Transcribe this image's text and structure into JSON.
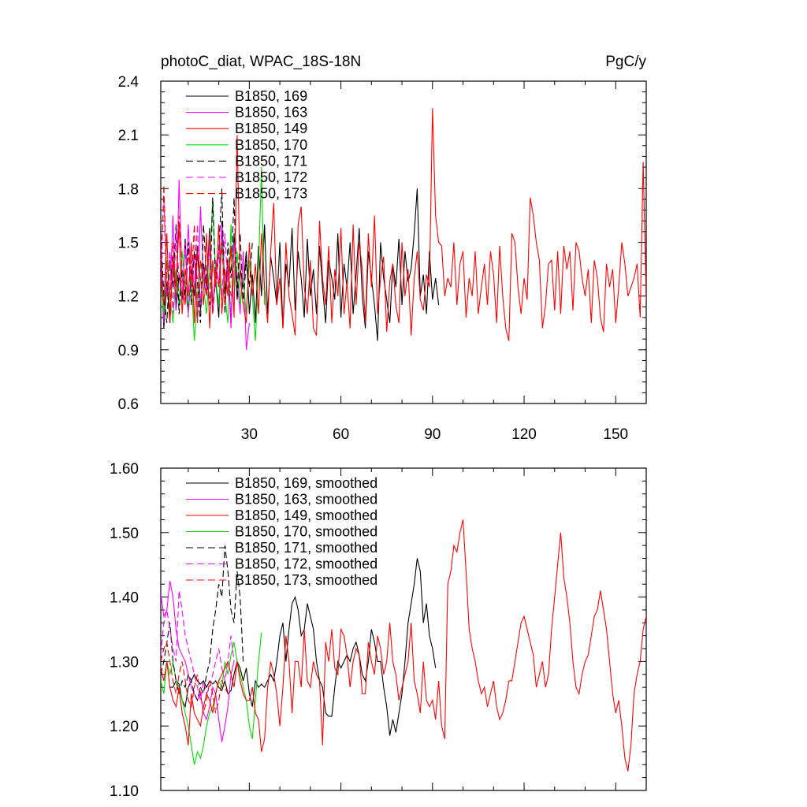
{
  "colors": {
    "s169": "#000000",
    "s163": "#ff00ff",
    "s149": "#ff0000",
    "s170": "#00dd00",
    "s171": "#000000",
    "s172": "#ff00ff",
    "s173": "#ff0000"
  },
  "chart_data": [
    {
      "type": "line",
      "title": "photoC_diat, WPAC_18S-18N",
      "units": "PgC/y",
      "xlim": [
        1,
        160
      ],
      "ylim": [
        0.6,
        2.4
      ],
      "xticks": [
        30,
        60,
        90,
        120,
        150
      ],
      "xtick_labels": [
        "30",
        "60",
        "90",
        "120",
        "150"
      ],
      "yticks": [
        0.6,
        0.9,
        1.2,
        1.5,
        1.8,
        2.1,
        2.4
      ],
      "ytick_labels": [
        "0.6",
        "0.9",
        "1.2",
        "1.5",
        "1.8",
        "2.1",
        "2.4"
      ],
      "legend": "top-left",
      "series": [
        {
          "name": "B1850, 169",
          "key": "s169",
          "dash": false,
          "x0": 1,
          "values": [
            1.45,
            1.02,
            1.28,
            1.05,
            1.42,
            1.12,
            1.32,
            1.18,
            1.52,
            1.1,
            1.35,
            1.2,
            1.48,
            1.12,
            1.38,
            1.25,
            1.58,
            1.15,
            1.3,
            1.08,
            1.62,
            1.22,
            1.4,
            1.05,
            1.55,
            1.18,
            1.35,
            1.25,
            1.45,
            1.1,
            1.32,
            1.05,
            1.48,
            1.2,
            1.6,
            1.1,
            1.42,
            1.3,
            1.15,
            1.5,
            1.02,
            1.38,
            1.25,
            1.58,
            1.12,
            1.45,
            1.3,
            1.08,
            1.52,
            1.2,
            1.35,
            1.1,
            1.48,
            1.25,
            1.05,
            1.4,
            1.3,
            1.18,
            1.55,
            1.08,
            1.38,
            1.25,
            1.5,
            1.1,
            1.32,
            1.58,
            1.2,
            1.02,
            1.45,
            1.3,
            1.15,
            0.95,
            1.5,
            1.3,
            1.18,
            1.05,
            1.38,
            1.25,
            1.52,
            1.15,
            1.45,
            1.28,
            1.35,
            1.55,
            1.8,
            1.2,
            1.32,
            1.1,
            1.45,
            1.18,
            1.3,
            1.15
          ]
        },
        {
          "name": "B1850, 163",
          "key": "s163",
          "dash": false,
          "x0": 1,
          "values": [
            1.55,
            1.05,
            1.4,
            1.2,
            1.65,
            1.12,
            1.85,
            1.3,
            1.15,
            1.6,
            1.25,
            1.45,
            1.05,
            1.7,
            1.3,
            1.2,
            1.55,
            1.1,
            1.4,
            1.25,
            1.6,
            1.15,
            1.35,
            1.02,
            1.5,
            1.3,
            1.1,
            1.45,
            0.9,
            1.05
          ]
        },
        {
          "name": "B1850, 149",
          "key": "s149",
          "dash": false,
          "x0": 1,
          "values": [
            1.3,
            1.15,
            1.55,
            1.05,
            1.4,
            1.25,
            1.6,
            1.1,
            1.35,
            1.2,
            1.5,
            1.05,
            1.45,
            1.3,
            1.15,
            1.55,
            1.02,
            1.4,
            1.25,
            1.6,
            1.1,
            1.35,
            1.2,
            1.48,
            1.08,
            2.1,
            1.3,
            1.15,
            1.05,
            1.5,
            1.2,
            1.38,
            1.1,
            1.55,
            1.25,
            1.05,
            1.45,
            1.72,
            1.15,
            1.3,
            1.02,
            1.5,
            1.2,
            1.1,
            0.98,
            1.6,
            1.7,
            1.25,
            1.1,
            1.4,
            1.02,
            0.98,
            1.62,
            1.3,
            1.15,
            1.48,
            1.05,
            1.35,
            1.2,
            1.58,
            1.1,
            1.28,
            1.02,
            1.6,
            1.15,
            1.5,
            1.35,
            1.05,
            1.55,
            1.25,
            1.65,
            1.1,
            1.3,
            1.42,
            1.0,
            1.28,
            1.38,
            1.15,
            1.05,
            1.5,
            1.2,
            1.35,
            0.98,
            1.3,
            1.45,
            1.18,
            1.12,
            1.32,
            1.25,
            2.25,
            1.65,
            1.5,
            1.48,
            1.2,
            1.3,
            1.25,
            1.5,
            1.15,
            1.38,
            1.45,
            1.08,
            1.3,
            1.2,
            1.45,
            1.1,
            1.25,
            1.38,
            1.15,
            1.45,
            1.32,
            1.05,
            1.48,
            1.2,
            1.02,
            0.95,
            1.55,
            1.5,
            1.25,
            1.1,
            1.3,
            1.18,
            1.75,
            1.65,
            1.5,
            1.4,
            1.02,
            1.15,
            1.38,
            1.4,
            1.12,
            1.45,
            1.1,
            1.48,
            1.35,
            1.45,
            1.12,
            1.5,
            1.45,
            1.3,
            1.2,
            1.35,
            1.05,
            1.4,
            1.3,
            1.08,
            1.0,
            1.38,
            1.25,
            1.35,
            1.05,
            1.25,
            1.5,
            1.38,
            1.2,
            1.25,
            1.3,
            1.38,
            1.08,
            1.95,
            1.18
          ]
        },
        {
          "name": "B1850, 170",
          "key": "s170",
          "dash": false,
          "x0": 1,
          "values": [
            1.3,
            1.1,
            1.4,
            1.2,
            1.05,
            1.35,
            1.15,
            1.45,
            1.25,
            1.1,
            1.3,
            0.95,
            1.2,
            1.4,
            1.25,
            1.1,
            1.35,
            1.75,
            1.3,
            1.15,
            1.5,
            1.2,
            1.05,
            1.6,
            1.25,
            1.45,
            1.15,
            1.3,
            1.1,
            1.4,
            1.2,
            0.95,
            1.35,
            1.92,
            1.15
          ]
        },
        {
          "name": "B1850, 171",
          "key": "s171",
          "dash": true,
          "x0": 1,
          "values": [
            1.55,
            1.2,
            1.05,
            1.4,
            1.25,
            1.6,
            1.1,
            1.35,
            1.2,
            1.5,
            1.15,
            1.45,
            1.28,
            1.05,
            1.6,
            1.3,
            1.15,
            1.75,
            1.25,
            1.45,
            1.8,
            1.1,
            1.5,
            1.3,
            1.75,
            1.2,
            1.55,
            1.15,
            1.4,
            1.25,
            1.5
          ]
        },
        {
          "name": "B1850, 172",
          "key": "s172",
          "dash": true,
          "x0": 1,
          "values": [
            1.35,
            1.75,
            1.2,
            1.45,
            1.1,
            1.55,
            1.3,
            1.2,
            1.5,
            1.08,
            1.4,
            1.25,
            1.6,
            1.15,
            1.35,
            1.22,
            1.48,
            1.1,
            1.3,
            1.45,
            1.18,
            1.55,
            1.25,
            1.1,
            1.4
          ]
        },
        {
          "name": "B1850, 173",
          "key": "s173",
          "dash": true,
          "x0": 1,
          "values": [
            1.25,
            1.82,
            1.3,
            1.1,
            1.5,
            1.2,
            1.65,
            1.35,
            1.15,
            1.45,
            1.25,
            1.6,
            1.05,
            1.4,
            1.3,
            1.2,
            1.55,
            1.1,
            1.35,
            1.25,
            1.5,
            1.15,
            1.4,
            1.2
          ]
        }
      ]
    },
    {
      "type": "line",
      "xlim": [
        1,
        160
      ],
      "ylim": [
        1.1,
        1.6
      ],
      "yticks": [
        1.1,
        1.2,
        1.3,
        1.4,
        1.5,
        1.6
      ],
      "ytick_labels": [
        "1.10",
        "1.20",
        "1.30",
        "1.40",
        "1.50",
        "1.60"
      ],
      "xticks": [
        30,
        60,
        90,
        120,
        150
      ],
      "legend": "top-left",
      "series": [
        {
          "name": "B1850, 169, smoothed",
          "key": "s169",
          "dash": false,
          "x0": 4,
          "values": [
            1.26,
            1.26,
            1.27,
            1.265,
            1.24,
            1.23,
            1.26,
            1.27,
            1.28,
            1.27,
            1.265,
            1.27,
            1.26,
            1.27,
            1.265,
            1.27,
            1.26,
            1.255,
            1.27,
            1.25,
            1.255,
            1.28,
            1.3,
            1.29,
            1.27,
            1.29,
            1.25,
            1.23,
            1.27,
            1.26,
            1.265,
            1.26,
            1.27,
            1.28,
            1.27,
            1.3,
            1.34,
            1.36,
            1.3,
            1.35,
            1.39,
            1.4,
            1.38,
            1.34,
            1.35,
            1.39,
            1.37,
            1.35,
            1.3,
            1.27,
            1.26,
            1.22,
            1.215,
            1.215,
            1.26,
            1.3,
            1.29,
            1.3,
            1.31,
            1.3,
            1.32,
            1.33,
            1.31,
            1.28,
            1.27,
            1.3,
            1.35,
            1.33,
            1.3,
            1.3,
            1.26,
            1.23,
            1.185,
            1.21,
            1.19,
            1.22,
            1.25,
            1.3,
            1.36,
            1.39,
            1.42,
            1.46,
            1.44,
            1.36,
            1.39,
            1.34,
            1.32,
            1.29
          ]
        },
        {
          "name": "B1850, 163, smoothed",
          "key": "s163",
          "dash": false,
          "x0": 1,
          "values": [
            1.405,
            1.37,
            1.38,
            1.425,
            1.4,
            1.35,
            1.32,
            1.31,
            1.3,
            1.28,
            1.26,
            1.25,
            1.24,
            1.25,
            1.22,
            1.21,
            1.23,
            1.26,
            1.25,
            1.21,
            1.175,
            1.2,
            1.23,
            1.28,
            1.3
          ]
        },
        {
          "name": "B1850, 149, smoothed",
          "key": "s149",
          "dash": false,
          "x0": 1,
          "values": [
            1.29,
            1.27,
            1.3,
            1.26,
            1.24,
            1.23,
            1.26,
            1.22,
            1.2,
            1.17,
            1.25,
            1.22,
            1.21,
            1.2,
            1.23,
            1.25,
            1.24,
            1.22,
            1.25,
            1.27,
            1.28,
            1.29,
            1.3,
            1.28,
            1.26,
            1.3,
            1.27,
            1.25,
            1.24,
            1.24,
            1.26,
            1.22,
            1.21,
            1.16,
            1.18,
            1.26,
            1.3,
            1.28,
            1.25,
            1.2,
            1.26,
            1.34,
            1.3,
            1.22,
            1.3,
            1.3,
            1.26,
            1.35,
            1.27,
            1.26,
            1.3,
            1.28,
            1.27,
            1.17,
            1.33,
            1.3,
            1.35,
            1.29,
            1.28,
            1.35,
            1.34,
            1.31,
            1.26,
            1.3,
            1.32,
            1.31,
            1.25,
            1.25,
            1.33,
            1.3,
            1.28,
            1.34,
            1.32,
            1.28,
            1.3,
            1.36,
            1.3,
            1.28,
            1.24,
            1.26,
            1.28,
            1.3,
            1.36,
            1.27,
            1.25,
            1.22,
            1.3,
            1.24,
            1.23,
            1.24,
            1.21,
            1.27,
            1.2,
            1.18,
            1.42,
            1.44,
            1.48,
            1.47,
            1.5,
            1.52,
            1.44,
            1.35,
            1.32,
            1.3,
            1.27,
            1.25,
            1.26,
            1.23,
            1.25,
            1.27,
            1.23,
            1.21,
            1.22,
            1.24,
            1.27,
            1.27,
            1.3,
            1.33,
            1.36,
            1.37,
            1.35,
            1.33,
            1.31,
            1.26,
            1.28,
            1.3,
            1.26,
            1.28,
            1.35,
            1.4,
            1.45,
            1.5,
            1.43,
            1.4,
            1.36,
            1.3,
            1.26,
            1.25,
            1.28,
            1.3,
            1.31,
            1.34,
            1.37,
            1.38,
            1.41,
            1.38,
            1.35,
            1.3,
            1.25,
            1.22,
            1.24,
            1.2,
            1.15,
            1.13,
            1.17,
            1.25,
            1.28,
            1.3,
            1.35,
            1.37,
            1.42,
            1.39,
            1.3,
            1.25,
            1.21,
            1.34,
            1.345
          ]
        },
        {
          "name": "B1850, 170, smoothed",
          "key": "s170",
          "dash": false,
          "x0": 1,
          "values": [
            1.27,
            1.25,
            1.3,
            1.28,
            1.3,
            1.27,
            1.26,
            1.24,
            1.22,
            1.2,
            1.17,
            1.14,
            1.16,
            1.15,
            1.17,
            1.2,
            1.22,
            1.23,
            1.25,
            1.27,
            1.26,
            1.3,
            1.28,
            1.31,
            1.33,
            1.3,
            1.28,
            1.26,
            1.24,
            1.2,
            1.18,
            1.24,
            1.3,
            1.345
          ]
        },
        {
          "name": "B1850, 171, smoothed",
          "key": "s171",
          "dash": true,
          "x0": 1,
          "values": [
            1.28,
            1.3,
            1.33,
            1.36,
            1.3,
            1.27,
            1.25,
            1.27,
            1.26,
            1.28,
            1.27,
            1.25,
            1.24,
            1.26,
            1.25,
            1.28,
            1.3,
            1.35,
            1.38,
            1.42,
            1.4,
            1.48,
            1.44,
            1.38,
            1.36,
            1.44,
            1.4,
            1.3
          ]
        },
        {
          "name": "B1850, 172, smoothed",
          "key": "s172",
          "dash": true,
          "x0": 1,
          "values": [
            1.31,
            1.36,
            1.38,
            1.35,
            1.32,
            1.3,
            1.41,
            1.38,
            1.34,
            1.32,
            1.3,
            1.28,
            1.26,
            1.24,
            1.27,
            1.25,
            1.26,
            1.28,
            1.3,
            1.32,
            1.29,
            1.27,
            1.3,
            1.34,
            1.3
          ]
        },
        {
          "name": "B1850, 173, smoothed",
          "key": "s173",
          "dash": true,
          "x0": 1,
          "values": [
            1.3,
            1.32,
            1.33,
            1.3,
            1.27,
            1.25,
            1.28,
            1.3,
            1.27,
            1.24,
            1.23,
            1.26,
            1.28,
            1.25,
            1.22,
            1.24,
            1.27,
            1.25,
            1.22,
            1.24,
            1.27,
            1.26,
            1.25
          ]
        }
      ]
    }
  ]
}
